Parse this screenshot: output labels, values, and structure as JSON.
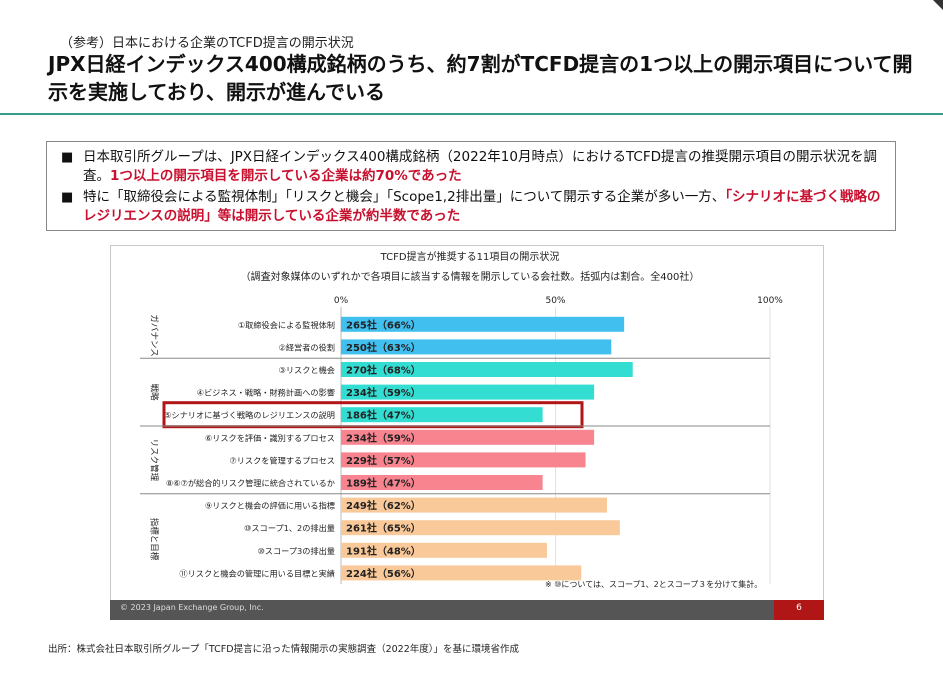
{
  "header": {
    "subtitle": "（参考）日本における企業のTCFD提言の開示状況",
    "title": "JPX日経インデックス400構成銘柄のうち、約7割がTCFD提言の1つ以上の開示項目について開示を実施しており、開示が進んでいる"
  },
  "summary": {
    "bullet_mark": "■",
    "b1_text": "日本取引所グループは、JPX日経インデックス400構成銘柄（2022年10月時点）におけるTCFD提言の推奨開示項目の開示状況を調査。",
    "b1_highlight": "1つ以上の開示項目を開示している企業は約70%であった",
    "b2_text": "特に「取締役会による監視体制」「リスクと機会」「Scope1,2排出量」について開示する企業が多い一方、",
    "b2_highlight": "「シナリオに基づく戦略のレジリエンスの説明」等は開示している企業が約半数であった"
  },
  "colors": {
    "governance": "#41bfef",
    "strategy": "#33ddd2",
    "risk": "#f88490",
    "metrics": "#f9c999",
    "highlight_box": "#b01616",
    "header_line": "#3a9b8c"
  },
  "chart_data": {
    "type": "bar",
    "orientation": "horizontal",
    "title": "TCFD提言が推奨する11項目の開示状況",
    "subtitle": "（調査対象媒体のいずれかで各項目に該当する情報を開示している会社数。括弧内は割合。全400社）",
    "xlim": [
      0,
      100
    ],
    "x_ticks": [
      "0%",
      "50%",
      "100%"
    ],
    "groups": [
      {
        "name": "ガバナンス",
        "color_key": "governance",
        "items": [
          {
            "label": "①取締役会による監視体制",
            "count": 265,
            "percent": 66,
            "value_label": "265社（66%）"
          },
          {
            "label": "②経営者の役割",
            "count": 250,
            "percent": 63,
            "value_label": "250社（63%）"
          }
        ]
      },
      {
        "name": "戦略",
        "color_key": "strategy",
        "items": [
          {
            "label": "③リスクと機会",
            "count": 270,
            "percent": 68,
            "value_label": "270社（68%）"
          },
          {
            "label": "④ビジネス・戦略・財務計画への影響",
            "count": 234,
            "percent": 59,
            "value_label": "234社（59%）"
          },
          {
            "label": "⑤シナリオに基づく戦略のレジリエンスの説明",
            "count": 186,
            "percent": 47,
            "value_label": "186社（47%）",
            "highlight": true
          }
        ]
      },
      {
        "name": "リスク管理",
        "color_key": "risk",
        "items": [
          {
            "label": "⑥リスクを評価・識別するプロセス",
            "count": 234,
            "percent": 59,
            "value_label": "234社（59%）"
          },
          {
            "label": "⑦リスクを管理するプロセス",
            "count": 229,
            "percent": 57,
            "value_label": "229社（57%）"
          },
          {
            "label": "⑧⑥⑦が総合的リスク管理に統合されているか",
            "count": 189,
            "percent": 47,
            "value_label": "189社（47%）"
          }
        ]
      },
      {
        "name": "指標と目標",
        "color_key": "metrics",
        "items": [
          {
            "label": "⑨リスクと機会の評価に用いる指標",
            "count": 249,
            "percent": 62,
            "value_label": "249社（62%）"
          },
          {
            "label": "⑩スコープ1、2の排出量",
            "count": 261,
            "percent": 65,
            "value_label": "261社（65%）"
          },
          {
            "label": "⑩スコープ3の排出量",
            "count": 191,
            "percent": 48,
            "value_label": "191社（48%）"
          },
          {
            "label": "⑪リスクと機会の管理に用いる目標と実績",
            "count": 224,
            "percent": 56,
            "value_label": "224社（56%）"
          }
        ]
      }
    ],
    "note": "※ ⑩については、スコープ1、2とスコープ３を分けて集計。"
  },
  "footer": {
    "copyright": "© 2023 Japan Exchange Group, Inc.",
    "page": "6"
  },
  "source": "出所：株式会社日本取引所グループ「TCFD提言に沿った情報開示の実態調査（2022年度）」を基に環境省作成"
}
